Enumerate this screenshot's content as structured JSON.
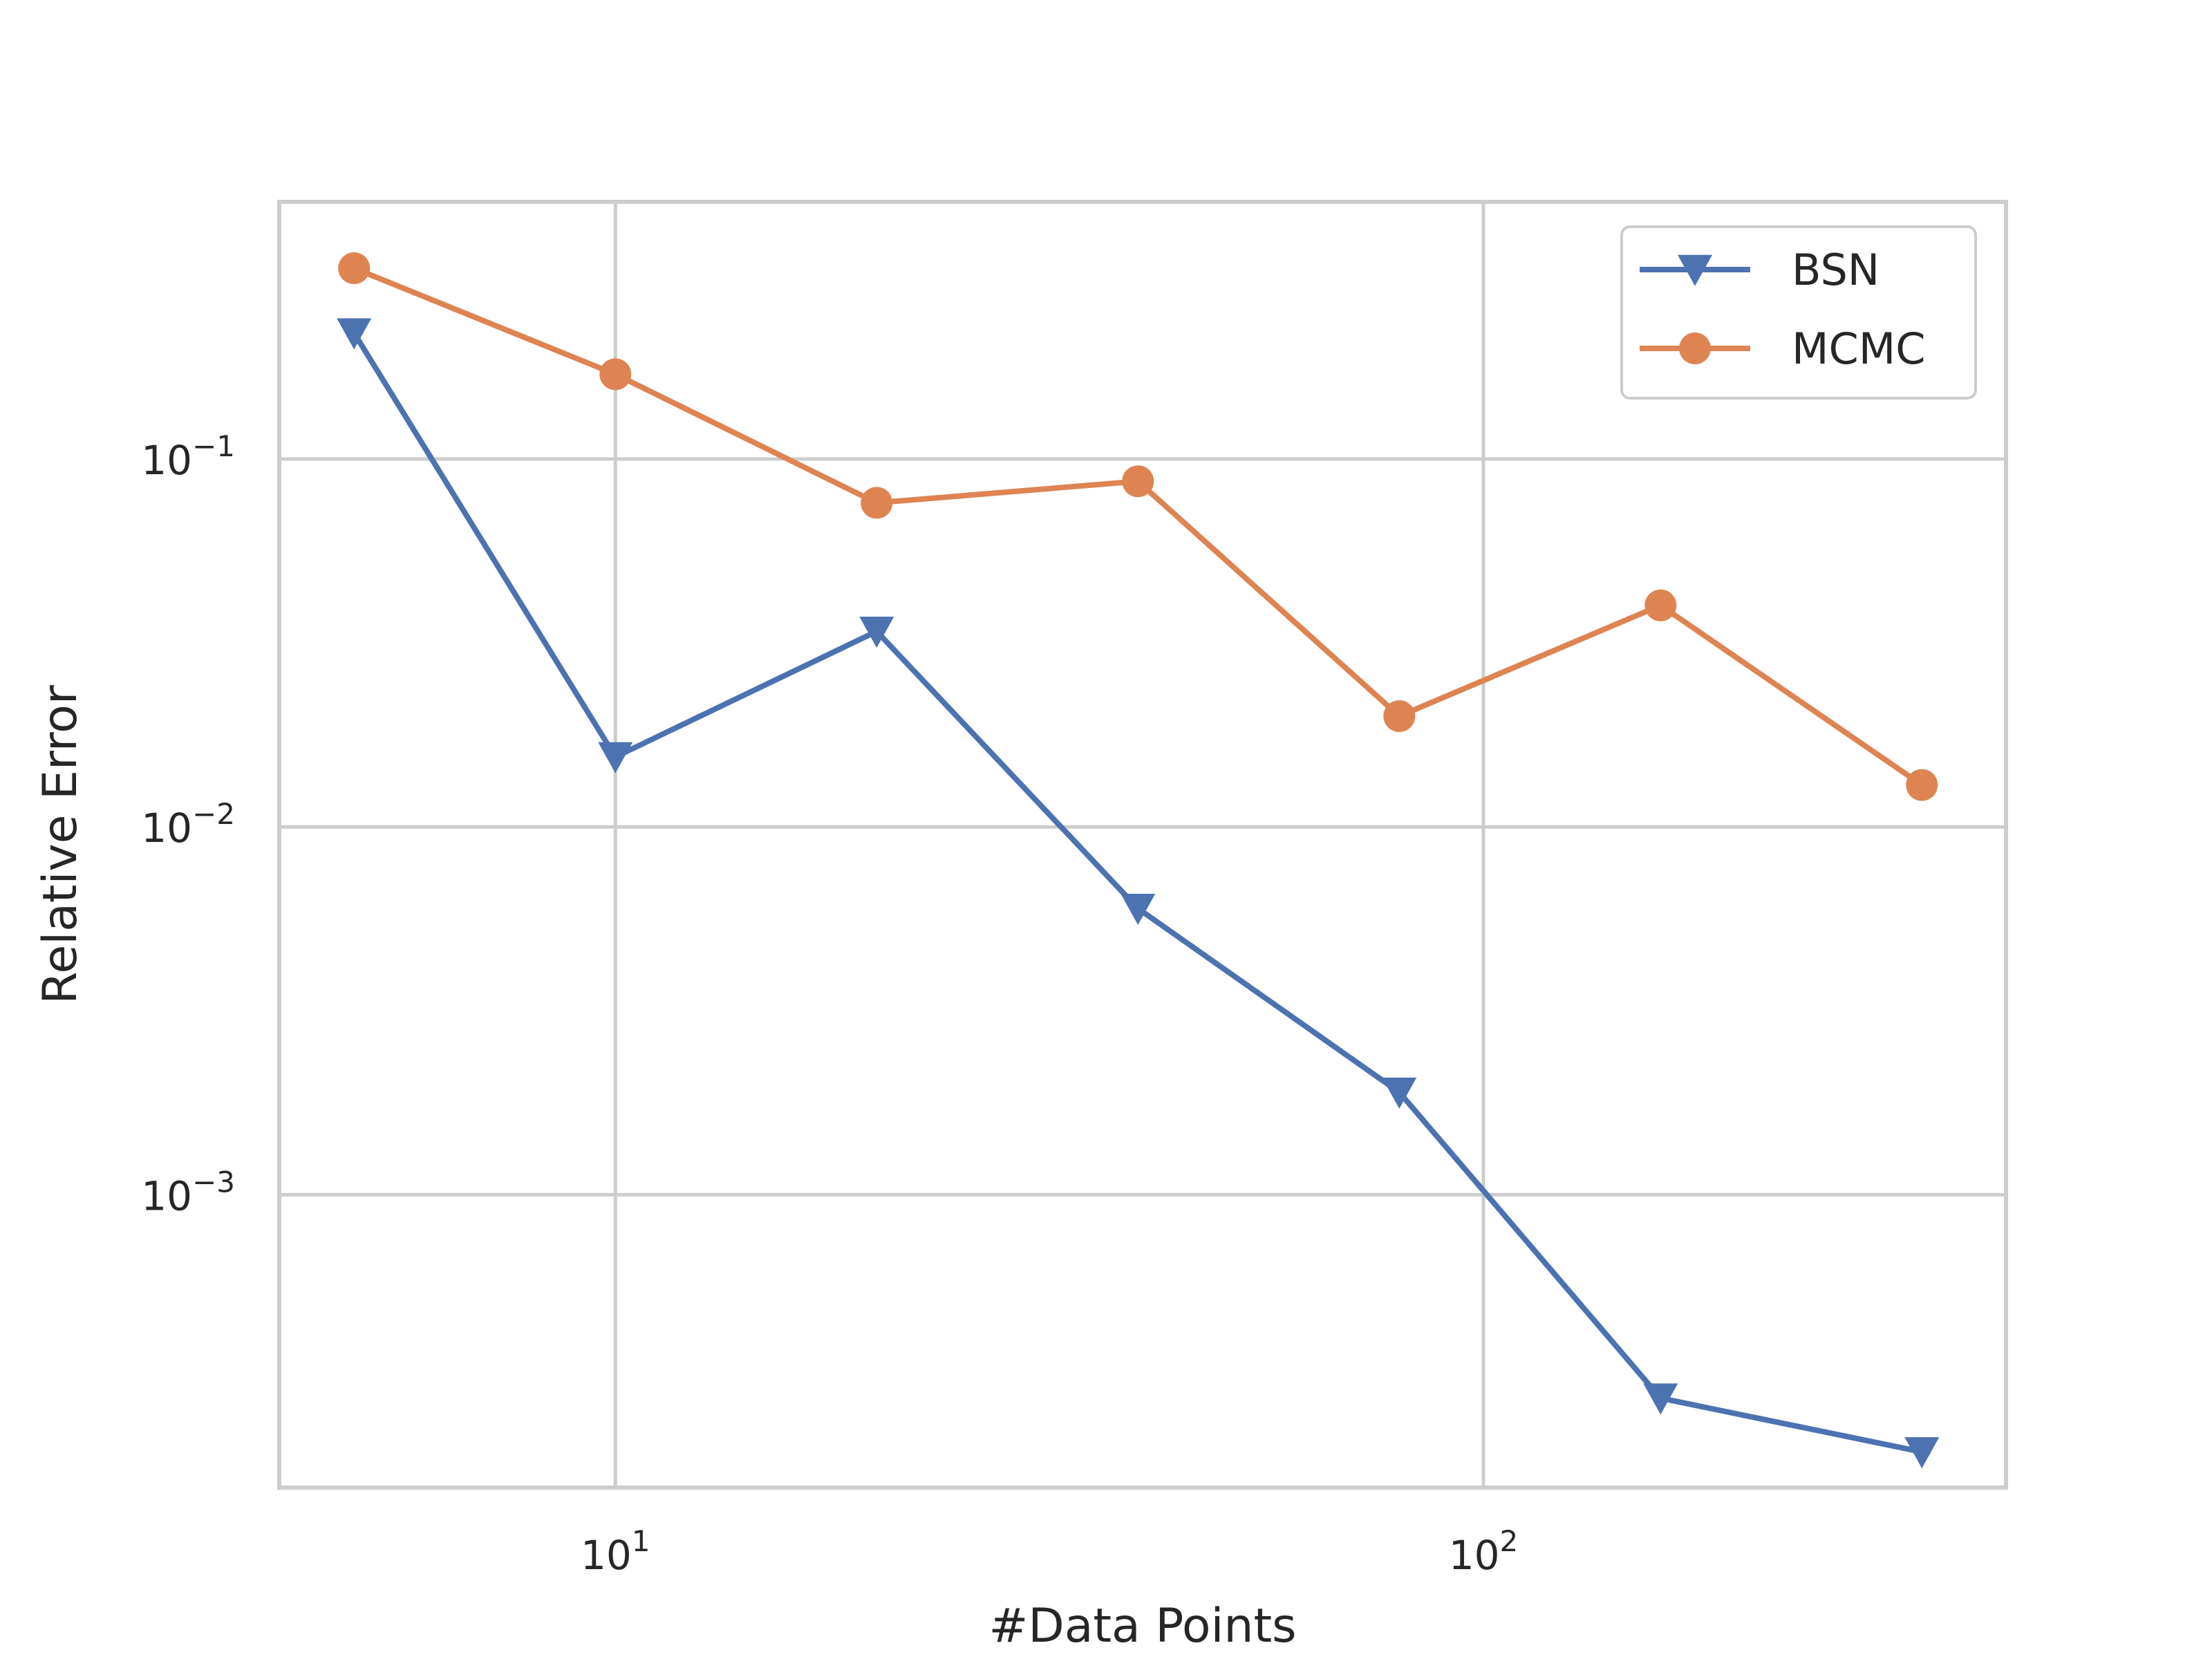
{
  "chart_data": {
    "type": "line",
    "title": "",
    "xlabel": "#Data Points",
    "ylabel": "Relative Error",
    "xscale": "log",
    "yscale": "log",
    "xlim": [
      4.1,
      400
    ],
    "ylim": [
      0.00016,
      0.5
    ],
    "x": [
      5,
      10,
      20,
      40,
      80,
      160,
      320
    ],
    "x_ticks": [
      {
        "value": 10,
        "base": "10",
        "exp": "1"
      },
      {
        "value": 100,
        "base": "10",
        "exp": "2"
      }
    ],
    "y_ticks": [
      {
        "value": 0.1,
        "base": "10",
        "exp": "−1"
      },
      {
        "value": 0.01,
        "base": "10",
        "exp": "−2"
      },
      {
        "value": 0.001,
        "base": "10",
        "exp": "−3"
      }
    ],
    "grid": true,
    "legend_position": "top-right",
    "series": [
      {
        "name": "BSN",
        "marker": "triangle-down",
        "color": "#4c72b0",
        "values": [
          0.22,
          0.0155,
          0.034,
          0.006,
          0.0019,
          0.00028,
          0.0002
        ]
      },
      {
        "name": "MCMC",
        "marker": "circle",
        "color": "#dd8452",
        "values": [
          0.33,
          0.17,
          0.076,
          0.087,
          0.02,
          0.04,
          0.013
        ]
      }
    ]
  }
}
